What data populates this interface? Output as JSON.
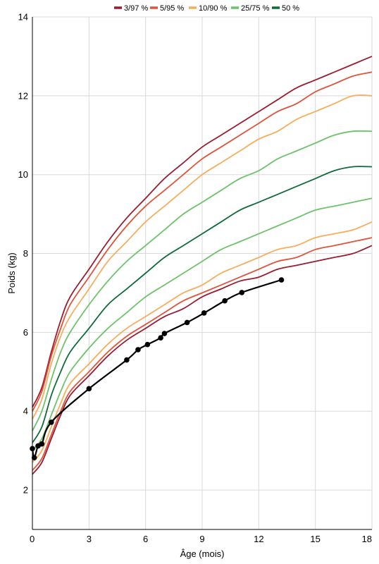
{
  "chart_data": {
    "type": "line",
    "title": "",
    "xlabel": "Âge (mois)",
    "ylabel": "Poids (kg)",
    "xlim": [
      0,
      18
    ],
    "ylim": [
      1,
      14
    ],
    "x_ticks": [
      0,
      3,
      6,
      9,
      12,
      15,
      18
    ],
    "y_ticks": [
      2,
      4,
      6,
      8,
      10,
      12,
      14
    ],
    "grid": true,
    "legend_position": "top",
    "legend": [
      {
        "label": "3/97 %",
        "color": "#9b1b30"
      },
      {
        "label": "5/95 %",
        "color": "#e0533a"
      },
      {
        "label": "10/90 %",
        "color": "#f6ad5c"
      },
      {
        "label": "25/75 %",
        "color": "#6cc36a"
      },
      {
        "label": "50 %",
        "color": "#0f6b3a"
      }
    ],
    "percentile_x": [
      0,
      0.5,
      1,
      1.5,
      2,
      3,
      4,
      5,
      6,
      7,
      8,
      9,
      10,
      11,
      12,
      13,
      14,
      15,
      16,
      17,
      18
    ],
    "series": [
      {
        "group": "3/97 %",
        "color": "#9b1b30",
        "values": [
          4.1,
          4.6,
          5.5,
          6.3,
          6.9,
          7.6,
          8.3,
          8.9,
          9.4,
          9.9,
          10.3,
          10.7,
          11.0,
          11.3,
          11.6,
          11.9,
          12.2,
          12.4,
          12.6,
          12.8,
          13.0
        ]
      },
      {
        "group": "5/95 %",
        "color": "#e0533a",
        "values": [
          4.0,
          4.5,
          5.4,
          6.1,
          6.7,
          7.4,
          8.1,
          8.7,
          9.2,
          9.6,
          10.0,
          10.4,
          10.7,
          11.0,
          11.3,
          11.6,
          11.8,
          12.1,
          12.3,
          12.5,
          12.6
        ]
      },
      {
        "group": "10/90 %",
        "color": "#f6ad5c",
        "values": [
          3.8,
          4.3,
          5.2,
          5.9,
          6.4,
          7.1,
          7.8,
          8.3,
          8.8,
          9.2,
          9.6,
          10.0,
          10.3,
          10.6,
          10.9,
          11.1,
          11.4,
          11.6,
          11.8,
          12.0,
          12.0
        ]
      },
      {
        "group": "25/75 %",
        "color": "#6cc36a",
        "values": [
          3.5,
          4.0,
          4.8,
          5.5,
          6.0,
          6.7,
          7.3,
          7.8,
          8.2,
          8.6,
          9.0,
          9.3,
          9.6,
          9.9,
          10.1,
          10.4,
          10.6,
          10.8,
          11.0,
          11.1,
          11.1
        ]
      },
      {
        "group": "50 %",
        "color": "#0f6b3a",
        "values": [
          3.2,
          3.6,
          4.4,
          5.0,
          5.5,
          6.1,
          6.7,
          7.1,
          7.5,
          7.9,
          8.2,
          8.5,
          8.8,
          9.1,
          9.3,
          9.5,
          9.7,
          9.9,
          10.1,
          10.2,
          10.2
        ]
      },
      {
        "group": "25/75 %",
        "color": "#6cc36a",
        "values": [
          3.0,
          3.3,
          3.9,
          4.5,
          5.0,
          5.6,
          6.1,
          6.5,
          6.9,
          7.2,
          7.5,
          7.8,
          8.1,
          8.3,
          8.5,
          8.7,
          8.9,
          9.1,
          9.2,
          9.3,
          9.4
        ]
      },
      {
        "group": "10/90 %",
        "color": "#f6ad5c",
        "values": [
          2.7,
          3.0,
          3.6,
          4.2,
          4.7,
          5.2,
          5.7,
          6.1,
          6.4,
          6.7,
          7.0,
          7.2,
          7.5,
          7.7,
          7.9,
          8.1,
          8.2,
          8.4,
          8.5,
          8.6,
          8.8
        ]
      },
      {
        "group": "5/95 %",
        "color": "#e0533a",
        "values": [
          2.5,
          2.8,
          3.4,
          4.0,
          4.5,
          5.0,
          5.5,
          5.9,
          6.2,
          6.5,
          6.8,
          7.0,
          7.2,
          7.4,
          7.6,
          7.8,
          7.9,
          8.1,
          8.2,
          8.3,
          8.4
        ]
      },
      {
        "group": "3/97 %",
        "color": "#9b1b30",
        "values": [
          2.4,
          2.7,
          3.3,
          3.9,
          4.4,
          4.9,
          5.4,
          5.8,
          6.1,
          6.4,
          6.6,
          6.9,
          7.1,
          7.3,
          7.4,
          7.6,
          7.7,
          7.8,
          7.9,
          8.0,
          8.2
        ]
      }
    ],
    "measurements": {
      "color": "#000000",
      "x": [
        0.0,
        0.1,
        0.3,
        0.5,
        1.0,
        3.0,
        5.0,
        5.6,
        6.1,
        6.8,
        7.0,
        8.2,
        9.1,
        10.2,
        11.1,
        13.2
      ],
      "y": [
        3.05,
        2.82,
        3.12,
        3.17,
        3.72,
        4.57,
        5.3,
        5.56,
        5.69,
        5.86,
        5.97,
        6.25,
        6.49,
        6.8,
        7.01,
        7.33
      ]
    }
  }
}
